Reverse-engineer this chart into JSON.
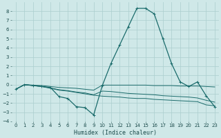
{
  "xlabel": "Humidex (Indice chaleur)",
  "background_color": "#cfe8e8",
  "grid_color": "#aacece",
  "line_color": "#1a6b6b",
  "xlim": [
    -0.5,
    23.5
  ],
  "ylim": [
    -4,
    9
  ],
  "yticks": [
    -4,
    -3,
    -2,
    -1,
    0,
    1,
    2,
    3,
    4,
    5,
    6,
    7,
    8
  ],
  "xticks": [
    0,
    1,
    2,
    3,
    4,
    5,
    6,
    7,
    8,
    9,
    10,
    11,
    12,
    13,
    14,
    15,
    16,
    17,
    18,
    19,
    20,
    21,
    22,
    23
  ],
  "line1_x": [
    0,
    1,
    2,
    3,
    4,
    5,
    6,
    7,
    8,
    9,
    10,
    11,
    12,
    13,
    14,
    15,
    16,
    17,
    18,
    19,
    20,
    21,
    22,
    23
  ],
  "line1_y": [
    -0.5,
    0.0,
    -0.1,
    -0.2,
    -0.3,
    -1.3,
    -1.5,
    -2.4,
    -2.5,
    -3.3,
    -0.1,
    2.3,
    4.3,
    6.3,
    8.3,
    8.3,
    7.7,
    5.0,
    2.3,
    0.3,
    -0.2,
    0.3,
    -1.2,
    -2.4
  ],
  "line2_x": [
    0,
    1,
    2,
    3,
    4,
    5,
    6,
    7,
    8,
    9,
    10,
    11,
    12,
    13,
    14,
    15,
    16,
    17,
    18,
    19,
    20,
    21,
    22,
    23
  ],
  "line2_y": [
    -0.5,
    0.0,
    -0.1,
    -0.2,
    -0.4,
    -0.6,
    -0.7,
    -0.85,
    -1.0,
    -1.15,
    -1.25,
    -1.3,
    -1.35,
    -1.45,
    -1.5,
    -1.5,
    -1.6,
    -1.65,
    -1.7,
    -1.75,
    -1.8,
    -1.85,
    -2.2,
    -2.3
  ],
  "line3_x": [
    0,
    1,
    2,
    3,
    4,
    5,
    6,
    7,
    8,
    9,
    10,
    11,
    12,
    13,
    14,
    15,
    16,
    17,
    18,
    19,
    20,
    21,
    22,
    23
  ],
  "line3_y": [
    -0.5,
    0.0,
    -0.05,
    -0.1,
    -0.2,
    -0.3,
    -0.35,
    -0.4,
    -0.5,
    -0.6,
    -0.05,
    -0.05,
    -0.05,
    -0.05,
    -0.05,
    -0.05,
    -0.1,
    -0.1,
    -0.1,
    -0.15,
    -0.15,
    -0.15,
    -0.2,
    -0.25
  ],
  "line4_x": [
    0,
    1,
    2,
    3,
    4,
    5,
    6,
    7,
    8,
    9,
    10,
    11,
    12,
    13,
    14,
    15,
    16,
    17,
    18,
    19,
    20,
    21,
    22,
    23
  ],
  "line4_y": [
    -0.5,
    0.0,
    -0.1,
    -0.2,
    -0.35,
    -0.55,
    -0.65,
    -0.8,
    -0.9,
    -1.1,
    -0.7,
    -0.75,
    -0.85,
    -0.95,
    -1.0,
    -1.05,
    -1.1,
    -1.2,
    -1.25,
    -1.3,
    -1.35,
    -1.45,
    -1.7,
    -1.9
  ]
}
